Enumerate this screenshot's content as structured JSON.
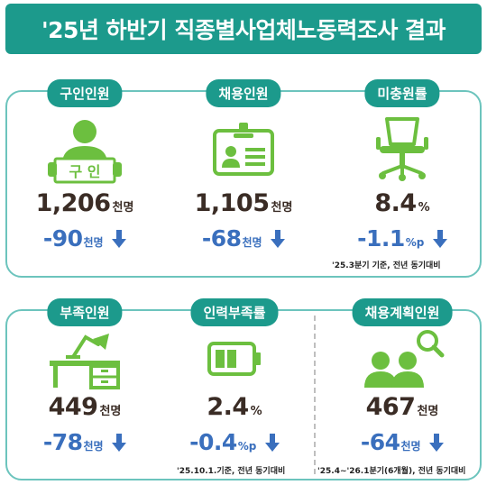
{
  "title": "'25년 하반기 직종별사업체노동력조사 결과",
  "colors": {
    "teal": "#1c9a8c",
    "green": "#6cbf3f",
    "blue": "#3a6fbd",
    "dark": "#3a2c25"
  },
  "top": [
    {
      "label": "구인인원",
      "icon": "job-seeker-icon",
      "sign_text": "구 인",
      "value": "1,206",
      "unit": "천명",
      "change": "-90",
      "change_unit": "천명"
    },
    {
      "label": "채용인원",
      "icon": "id-badge-icon",
      "value": "1,105",
      "unit": "천명",
      "change": "-68",
      "change_unit": "천명"
    },
    {
      "label": "미충원률",
      "icon": "empty-chair-icon",
      "value": "8.4",
      "unit": "%",
      "change": "-1.1",
      "change_unit": "%p",
      "note": "'25.3분기 기준, 전년 동기대비"
    }
  ],
  "bottom": [
    {
      "label": "부족인원",
      "icon": "desk-lamp-icon",
      "value": "449",
      "unit": "천명",
      "change": "-78",
      "change_unit": "천명"
    },
    {
      "label": "인력부족률",
      "icon": "battery-low-icon",
      "value": "2.4",
      "unit": "%",
      "change": "-0.4",
      "change_unit": "%p",
      "note": "'25.10.1.기준, 전년 동기대비"
    },
    {
      "label": "채용계획인원",
      "icon": "people-search-icon",
      "value": "467",
      "unit": "천명",
      "change": "-64",
      "change_unit": "천명",
      "note": "'25.4~'26.1분기(6개월), 전년 동기대비"
    }
  ]
}
